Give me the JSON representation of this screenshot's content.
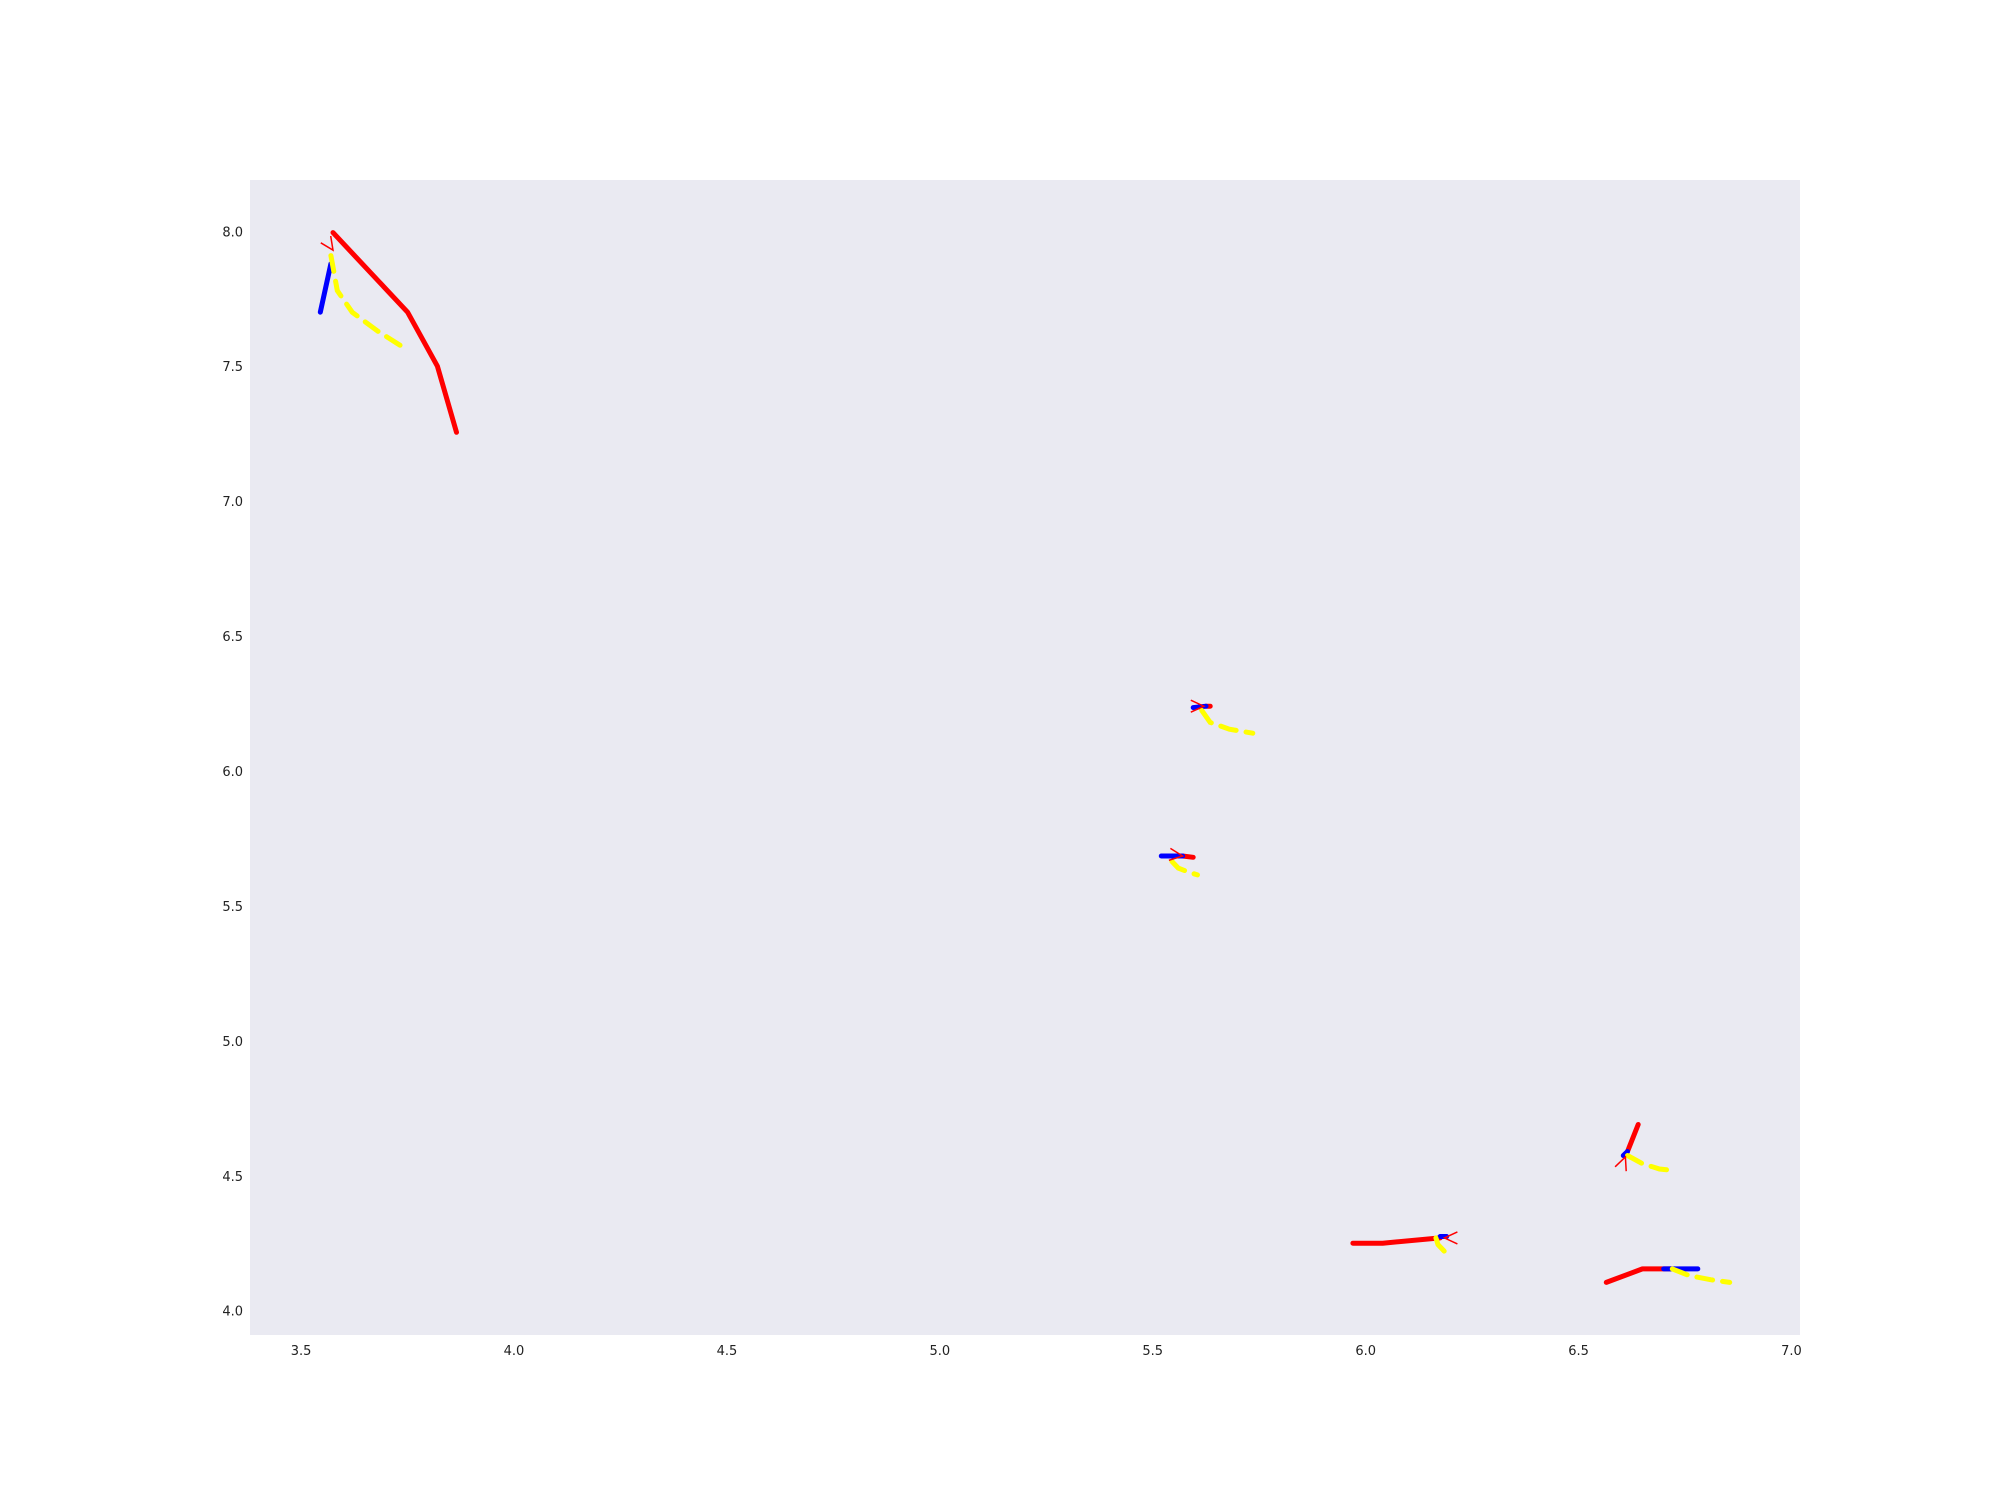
{
  "chart_data": {
    "type": "line",
    "title": "",
    "xlabel": "",
    "ylabel": "",
    "xlim": [
      3.38,
      7.02
    ],
    "ylim": [
      3.91,
      8.19
    ],
    "grid": false,
    "background": "#eaeaf2",
    "x_ticks": [
      "3.5",
      "4.0",
      "4.5",
      "5.0",
      "5.5",
      "6.0",
      "6.5",
      "7.0"
    ],
    "y_ticks": [
      "4.0",
      "4.5",
      "5.0",
      "5.5",
      "6.0",
      "6.5",
      "7.0",
      "7.5",
      "8.0"
    ],
    "colors": {
      "history": "#0000ff",
      "future": "#ff0000",
      "prediction": "#ffff00"
    },
    "tracks": [
      {
        "history": [
          [
            3.545,
            7.7
          ],
          [
            3.57,
            7.88
          ]
        ],
        "future": [
          [
            3.575,
            7.995
          ],
          [
            3.75,
            7.7
          ],
          [
            3.82,
            7.5
          ],
          [
            3.865,
            7.255
          ]
        ],
        "prediction": [
          [
            3.57,
            7.91
          ],
          [
            3.585,
            7.78
          ],
          [
            3.62,
            7.7
          ],
          [
            3.68,
            7.63
          ],
          [
            3.74,
            7.57
          ]
        ],
        "arrow": [
          3.575,
          7.93
        ]
      },
      {
        "history": [
          [
            5.595,
            6.235
          ],
          [
            5.625,
            6.24
          ]
        ],
        "future": [
          [
            5.625,
            6.24
          ],
          [
            5.635,
            6.24
          ]
        ],
        "prediction": [
          [
            5.615,
            6.225
          ],
          [
            5.635,
            6.18
          ],
          [
            5.68,
            6.155
          ],
          [
            5.735,
            6.14
          ]
        ],
        "arrow": [
          5.62,
          6.24
        ]
      },
      {
        "history": [
          [
            5.52,
            5.685
          ],
          [
            5.57,
            5.685
          ]
        ],
        "future": [
          [
            5.57,
            5.685
          ],
          [
            5.595,
            5.68
          ]
        ],
        "prediction": [
          [
            5.545,
            5.665
          ],
          [
            5.56,
            5.64
          ],
          [
            5.585,
            5.625
          ],
          [
            5.605,
            5.615
          ]
        ],
        "arrow": [
          5.57,
          5.685
        ]
      },
      {
        "history": [
          [
            6.605,
            4.575
          ],
          [
            6.615,
            4.59
          ]
        ],
        "future": [
          [
            6.615,
            4.59
          ],
          [
            6.64,
            4.69
          ]
        ],
        "prediction": [
          [
            6.615,
            4.575
          ],
          [
            6.65,
            4.545
          ],
          [
            6.69,
            4.525
          ],
          [
            6.72,
            4.52
          ]
        ],
        "arrow": [
          6.61,
          4.57
        ]
      },
      {
        "history": [
          [
            6.175,
            4.275
          ],
          [
            6.19,
            4.275
          ]
        ],
        "future": [
          [
            5.97,
            4.25
          ],
          [
            6.04,
            4.25
          ],
          [
            6.175,
            4.27
          ]
        ],
        "prediction": [
          [
            6.165,
            4.27
          ],
          [
            6.17,
            4.245
          ],
          [
            6.185,
            4.22
          ]
        ],
        "arrow": [
          6.185,
          4.27
        ]
      },
      {
        "history": [
          [
            6.7,
            4.155
          ],
          [
            6.78,
            4.155
          ]
        ],
        "future": [
          [
            6.565,
            4.105
          ],
          [
            6.65,
            4.155
          ],
          [
            6.72,
            4.155
          ]
        ],
        "prediction": [
          [
            6.72,
            4.155
          ],
          [
            6.76,
            4.13
          ],
          [
            6.81,
            4.115
          ],
          [
            6.855,
            4.105
          ]
        ],
        "arrow": [
          6.72,
          4.155
        ]
      }
    ]
  }
}
